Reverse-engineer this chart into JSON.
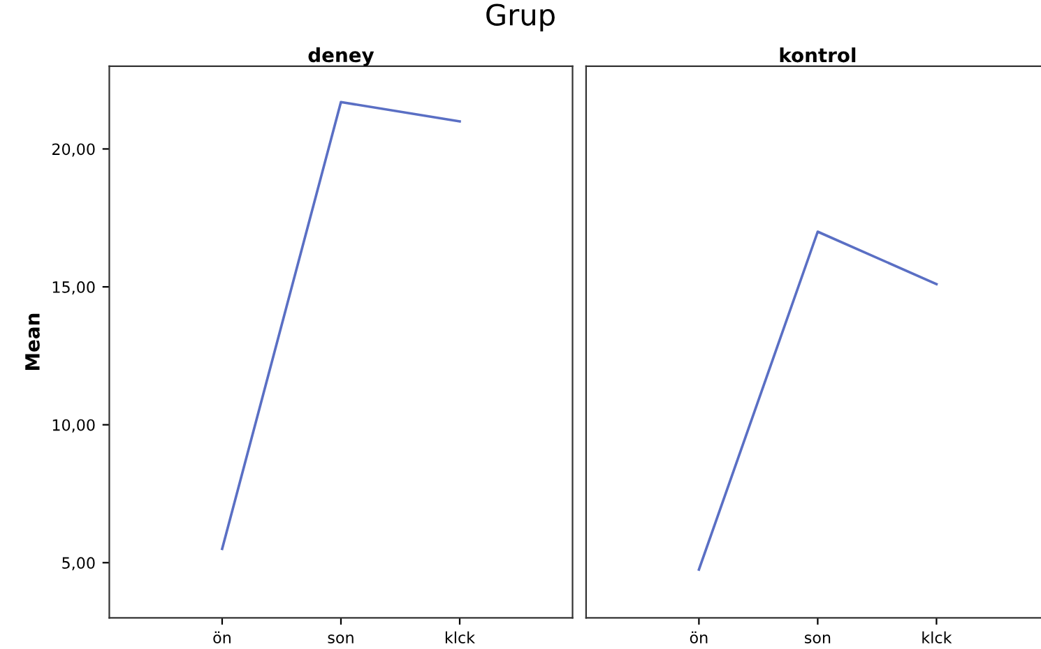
{
  "chart_data": [
    {
      "type": "line",
      "title": "deney",
      "ylabel": "Mean",
      "categories": [
        "ön",
        "son",
        "klck"
      ],
      "values": [
        5.5,
        21.7,
        21.0
      ],
      "color": "#5a6fc4",
      "ylim": [
        3.0,
        23.0
      ],
      "yticks": [
        {
          "value": 5,
          "label": "5,00"
        },
        {
          "value": 10,
          "label": "10,00"
        },
        {
          "value": 15,
          "label": "15,00"
        },
        {
          "value": 20,
          "label": "20,00"
        }
      ],
      "grid": false,
      "legend": false,
      "annotations": [
        "Grup"
      ]
    },
    {
      "type": "line",
      "title": "kontrol",
      "categories": [
        "ön",
        "son",
        "klck"
      ],
      "values": [
        4.75,
        17.0,
        15.1
      ],
      "color": "#5a6fc4",
      "ylim": [
        3.0,
        23.0
      ],
      "tick_labels": "x",
      "grid": false,
      "legend": false
    }
  ]
}
